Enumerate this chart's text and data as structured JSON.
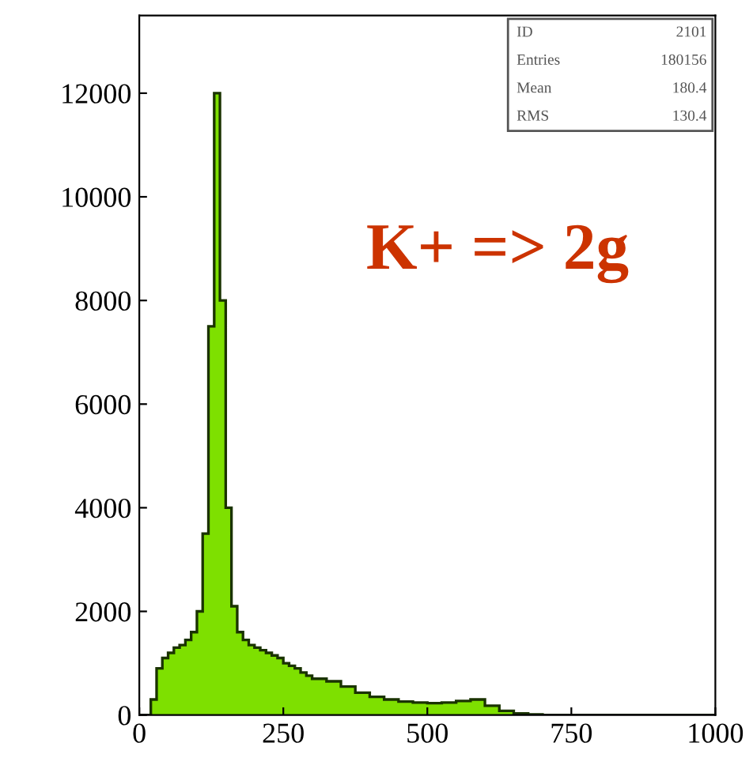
{
  "chart_data": {
    "type": "histogram",
    "bins": [
      0,
      10,
      20,
      30,
      40,
      50,
      60,
      70,
      80,
      90,
      100,
      110,
      120,
      130,
      140,
      150,
      160,
      170,
      180,
      190,
      200,
      210,
      220,
      230,
      240,
      250,
      260,
      270,
      280,
      290,
      300,
      325,
      350,
      375,
      400,
      425,
      450,
      475,
      500,
      525,
      550,
      575,
      600,
      625,
      650,
      675,
      700,
      1000
    ],
    "values": [
      0,
      0,
      300,
      900,
      1100,
      1200,
      1300,
      1350,
      1450,
      1600,
      2000,
      3500,
      7500,
      12000,
      8000,
      4000,
      2100,
      1600,
      1450,
      1350,
      1300,
      1250,
      1200,
      1150,
      1100,
      1000,
      950,
      900,
      820,
      760,
      700,
      650,
      550,
      430,
      350,
      300,
      260,
      240,
      230,
      240,
      270,
      300,
      180,
      80,
      30,
      10,
      0
    ],
    "color": "#7ee000",
    "xlim": [
      0,
      1000
    ],
    "ylim": [
      0,
      13500
    ],
    "xticks": [
      0,
      250,
      500,
      750,
      1000
    ],
    "yticks": [
      0,
      2000,
      4000,
      6000,
      8000,
      10000,
      12000
    ],
    "grid": false,
    "annotations": [
      "K+ => 2g",
      "ID 2101",
      "Entries 180156",
      "Mean 180.4",
      "RMS 130.4"
    ]
  }
}
